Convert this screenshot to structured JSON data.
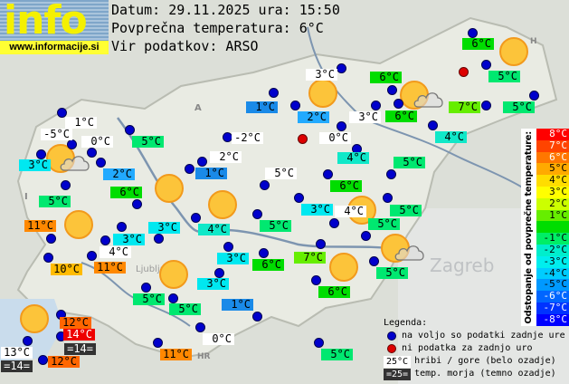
{
  "header": {
    "logo_word": "info",
    "logo_url": "www.informacije.si",
    "date_line": "Datum: 29.11.2025 ura: 15:50",
    "avg_line": "Povprečna temperatura: 6°C",
    "source_line": "Vir podatkov: ARSO"
  },
  "map_labels": [
    {
      "text": "1°C",
      "bg": "#ffffff"
    },
    {
      "text": "-5°C",
      "bg": "#ffffff"
    },
    {
      "text": "0°C",
      "bg": "#ffffff"
    },
    {
      "text": "3°C",
      "bg": "#00e8f0"
    },
    {
      "text": "2°C",
      "bg": "#22aaff"
    },
    {
      "text": "5°C",
      "bg": "#00e870"
    },
    {
      "text": "-2°C",
      "bg": "#ffffff"
    },
    {
      "text": "1°C",
      "bg": "#1a8ae8"
    },
    {
      "text": "5°C",
      "bg": "#00e870"
    },
    {
      "text": "6°C",
      "bg": "#00dd00"
    },
    {
      "text": "2°C",
      "bg": "#ffffff"
    },
    {
      "text": "1°C",
      "bg": "#1a8ae8"
    },
    {
      "text": "5°C",
      "bg": "#ffffff"
    },
    {
      "text": "11°C",
      "bg": "#ff8800"
    },
    {
      "text": "3°C",
      "bg": "#00e8f0"
    },
    {
      "text": "4°C",
      "bg": "#10e8c8"
    },
    {
      "text": "5°C",
      "bg": "#00e870"
    },
    {
      "text": "3°C",
      "bg": "#00e8f0"
    },
    {
      "text": "4°C",
      "bg": "#ffffff"
    },
    {
      "text": "10°C",
      "bg": "#ffbb00"
    },
    {
      "text": "11°C",
      "bg": "#ff8800"
    },
    {
      "text": "5°C",
      "bg": "#00e870"
    },
    {
      "text": "5°C",
      "bg": "#00e870"
    },
    {
      "text": "3°C",
      "bg": "#00e8f0"
    },
    {
      "text": "6°C",
      "bg": "#00dd00"
    },
    {
      "text": "3°C",
      "bg": "#00e8f0"
    },
    {
      "text": "1°C",
      "bg": "#1a8ae8"
    },
    {
      "text": "0°C",
      "bg": "#ffffff"
    },
    {
      "text": "11°C",
      "bg": "#ff8800"
    },
    {
      "text": "12°C",
      "bg": "#ff6600"
    },
    {
      "text": "14°C",
      "bg": "#ee0000"
    },
    {
      "text": "=14=",
      "bg": "#333333"
    },
    {
      "text": "13°C",
      "bg": "#ffffff"
    },
    {
      "text": "=14=",
      "bg": "#333333"
    },
    {
      "text": "12°C",
      "bg": "#ff6600"
    },
    {
      "text": "4°C",
      "bg": "#10e8c8"
    },
    {
      "text": "5°C",
      "bg": "#00e870"
    },
    {
      "text": "6°C",
      "bg": "#00dd00"
    },
    {
      "text": "3°C",
      "bg": "#00e8f0"
    },
    {
      "text": "4°C",
      "bg": "#ffffff"
    },
    {
      "text": "5°C",
      "bg": "#00e870"
    },
    {
      "text": "5°C",
      "bg": "#00e870"
    },
    {
      "text": "7°C",
      "bg": "#66ee00"
    },
    {
      "text": "5°C",
      "bg": "#00e870"
    },
    {
      "text": "6°C",
      "bg": "#00dd00"
    },
    {
      "text": "5°C",
      "bg": "#00e870"
    },
    {
      "text": "6°C",
      "bg": "#00dd00"
    },
    {
      "text": "5°C",
      "bg": "#00e870"
    },
    {
      "text": "5°C",
      "bg": "#00e870"
    },
    {
      "text": "7°C",
      "bg": "#66ee00"
    },
    {
      "text": "6°C",
      "bg": "#00dd00"
    },
    {
      "text": "6°C",
      "bg": "#00dd00"
    },
    {
      "text": "3°C",
      "bg": "#ffffff"
    },
    {
      "text": "3°C",
      "bg": "#ffffff"
    },
    {
      "text": "2°C",
      "bg": "#22aaff"
    },
    {
      "text": "0°C",
      "bg": "#ffffff"
    },
    {
      "text": "4°C",
      "bg": "#10e8c8"
    }
  ],
  "station_dots": [
    "available",
    "available",
    "available",
    "available",
    "available",
    "available",
    "available",
    "available",
    "available",
    "available",
    "available",
    "available",
    "available",
    "available",
    "available",
    "available",
    "available",
    "available",
    "available",
    "available",
    "available",
    "available",
    "available",
    "available",
    "available",
    "available",
    "available",
    "available",
    "available",
    "available",
    "available",
    "available",
    "available",
    "available",
    "available",
    "available",
    "available",
    "available",
    "available",
    "available",
    "available",
    "available",
    "available",
    "available",
    "available",
    "available",
    "no-data",
    "available",
    "available",
    "available",
    "available",
    "available",
    "available",
    "available",
    "available",
    "no-data",
    "available"
  ],
  "weather_icons": [
    "partly-cloudy",
    "sunny",
    "sunny",
    "sunny",
    "sunny",
    "sunny",
    "sunny",
    "partly-cloudy",
    "sunny",
    "sunny",
    "partly-cloudy",
    "sunny"
  ],
  "scale": {
    "title": "Odstopanje od povprečne temperature:",
    "steps": [
      {
        "label": "8°C",
        "color": "#ff0000",
        "text": "#ffffff"
      },
      {
        "label": "7°C",
        "color": "#ff4400",
        "text": "#ffffff"
      },
      {
        "label": "6°C",
        "color": "#ff7700",
        "text": "#ffffff"
      },
      {
        "label": "5°C",
        "color": "#ffaa00",
        "text": "#000000"
      },
      {
        "label": "4°C",
        "color": "#ffdd00",
        "text": "#000000"
      },
      {
        "label": "3°C",
        "color": "#ffff00",
        "text": "#000000"
      },
      {
        "label": "2°C",
        "color": "#ccff00",
        "text": "#000000"
      },
      {
        "label": "1°C",
        "color": "#66ee00",
        "text": "#000000"
      },
      {
        "label": "",
        "color": "#00dd00",
        "text": "#000000"
      },
      {
        "label": "-1°C",
        "color": "#00ee66",
        "text": "#000000"
      },
      {
        "label": "-2°C",
        "color": "#00eecc",
        "text": "#000000"
      },
      {
        "label": "-3°C",
        "color": "#00eeee",
        "text": "#000000"
      },
      {
        "label": "-4°C",
        "color": "#00ccff",
        "text": "#000000"
      },
      {
        "label": "-5°C",
        "color": "#0099ff",
        "text": "#000000"
      },
      {
        "label": "-6°C",
        "color": "#0066ff",
        "text": "#ffffff"
      },
      {
        "label": "-7°C",
        "color": "#0033ff",
        "text": "#ffffff"
      },
      {
        "label": "-8°C",
        "color": "#0000ff",
        "text": "#ffffff"
      }
    ]
  },
  "legend": {
    "title": "Legenda:",
    "available": "na voljo so podatki zadnje ure",
    "no_data": "ni podatka za zadnjo uro",
    "mountain_sample": "25°C",
    "mountain": "hribi / gore (belo ozadje)",
    "sea_sample": "=25=",
    "sea": "temp. morja (temno ozadje)"
  },
  "map_text": {
    "zagreb": "Zagreb",
    "ljubljana": "Ljubljana",
    "austria": "A",
    "italy": "I",
    "croatia": "HR",
    "hungary": "H"
  }
}
